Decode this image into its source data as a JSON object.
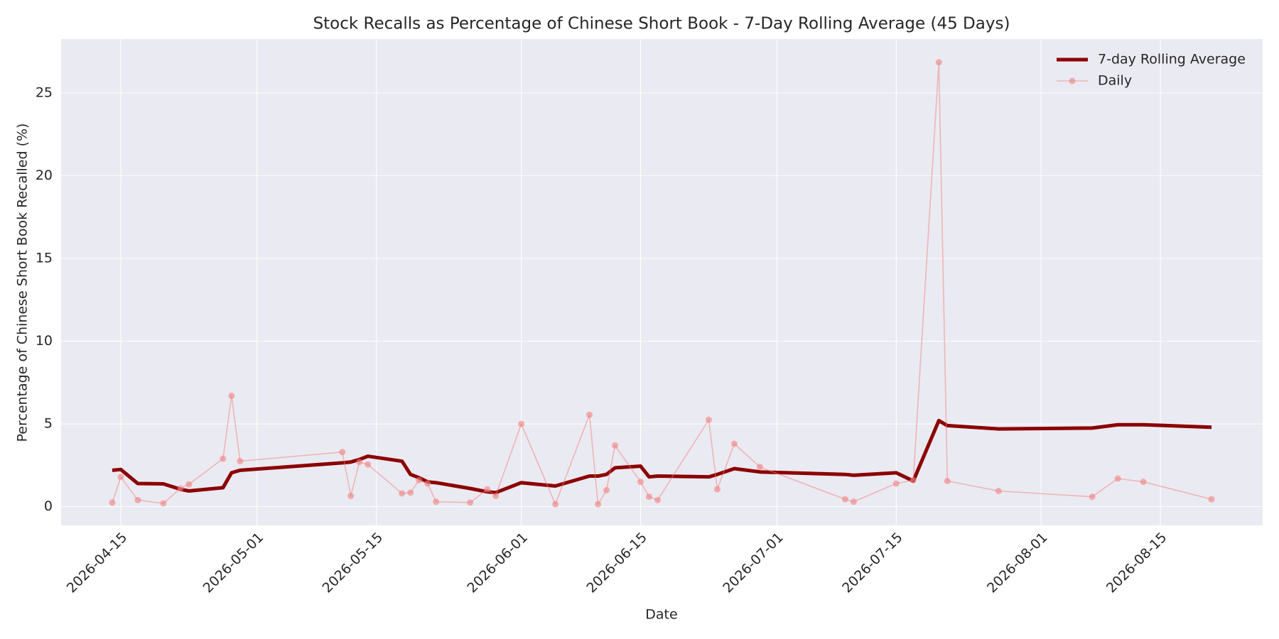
{
  "chart_data": {
    "type": "line",
    "title": "Stock Recalls as Percentage of Chinese Short Book - 7-Day Rolling Average (45 Days)",
    "x_label": "Date",
    "y_label": "Percentage of Chinese Short Book Recalled (%)",
    "x": [
      "2026-04-14",
      "2026-04-15",
      "2026-04-17",
      "2026-04-20",
      "2026-04-22",
      "2026-04-23",
      "2026-04-27",
      "2026-04-28",
      "2026-04-29",
      "2026-05-11",
      "2026-05-12",
      "2026-05-13",
      "2026-05-14",
      "2026-05-18",
      "2026-05-19",
      "2026-05-20",
      "2026-05-21",
      "2026-05-22",
      "2026-05-26",
      "2026-05-28",
      "2026-05-29",
      "2026-06-01",
      "2026-06-05",
      "2026-06-09",
      "2026-06-10",
      "2026-06-11",
      "2026-06-12",
      "2026-06-15",
      "2026-06-16",
      "2026-06-17",
      "2026-06-23",
      "2026-06-24",
      "2026-06-26",
      "2026-06-29",
      "2026-07-09",
      "2026-07-10",
      "2026-07-15",
      "2026-07-17",
      "2026-07-20",
      "2026-07-21",
      "2026-07-27",
      "2026-08-07",
      "2026-08-10",
      "2026-08-13",
      "2026-08-21"
    ],
    "series": [
      {
        "name": "7-day Rolling Average",
        "color": "#8b0000",
        "marker": false,
        "values": [
          2.2,
          2.25,
          1.4,
          1.38,
          1.05,
          0.95,
          1.15,
          2.05,
          2.2,
          2.65,
          2.7,
          2.85,
          3.05,
          2.75,
          1.95,
          1.75,
          1.5,
          1.45,
          1.1,
          0.9,
          0.85,
          1.45,
          1.25,
          1.85,
          1.85,
          1.95,
          2.35,
          2.45,
          1.8,
          1.85,
          1.8,
          1.95,
          2.3,
          2.1,
          1.95,
          1.9,
          2.05,
          1.55,
          5.2,
          4.9,
          4.7,
          4.75,
          4.95,
          4.95,
          4.8
        ]
      },
      {
        "name": "Daily",
        "color": "#f08080",
        "marker": true,
        "values": [
          0.25,
          1.8,
          0.4,
          0.2,
          1.1,
          1.35,
          2.9,
          6.7,
          2.75,
          3.3,
          0.65,
          2.7,
          2.55,
          0.8,
          0.85,
          1.6,
          1.4,
          0.3,
          0.25,
          1.05,
          0.65,
          5.0,
          0.15,
          5.55,
          0.15,
          1.0,
          3.7,
          1.5,
          0.6,
          0.4,
          5.25,
          1.05,
          3.8,
          2.4,
          0.45,
          0.3,
          1.4,
          1.6,
          26.85,
          1.55,
          0.95,
          0.6,
          1.7,
          1.5,
          0.45
        ]
      }
    ],
    "xlim": [
      "2026-04-08",
      "2026-08-27"
    ],
    "xticks": [
      "2026-04-15",
      "2026-05-01",
      "2026-05-15",
      "2026-06-01",
      "2026-06-15",
      "2026-07-01",
      "2026-07-15",
      "2026-08-01",
      "2026-08-15"
    ],
    "ylim": [
      -1.13,
      28.25
    ],
    "yticks": [
      0,
      5,
      10,
      15,
      20,
      25
    ],
    "grid": true,
    "legend": "upper right"
  }
}
